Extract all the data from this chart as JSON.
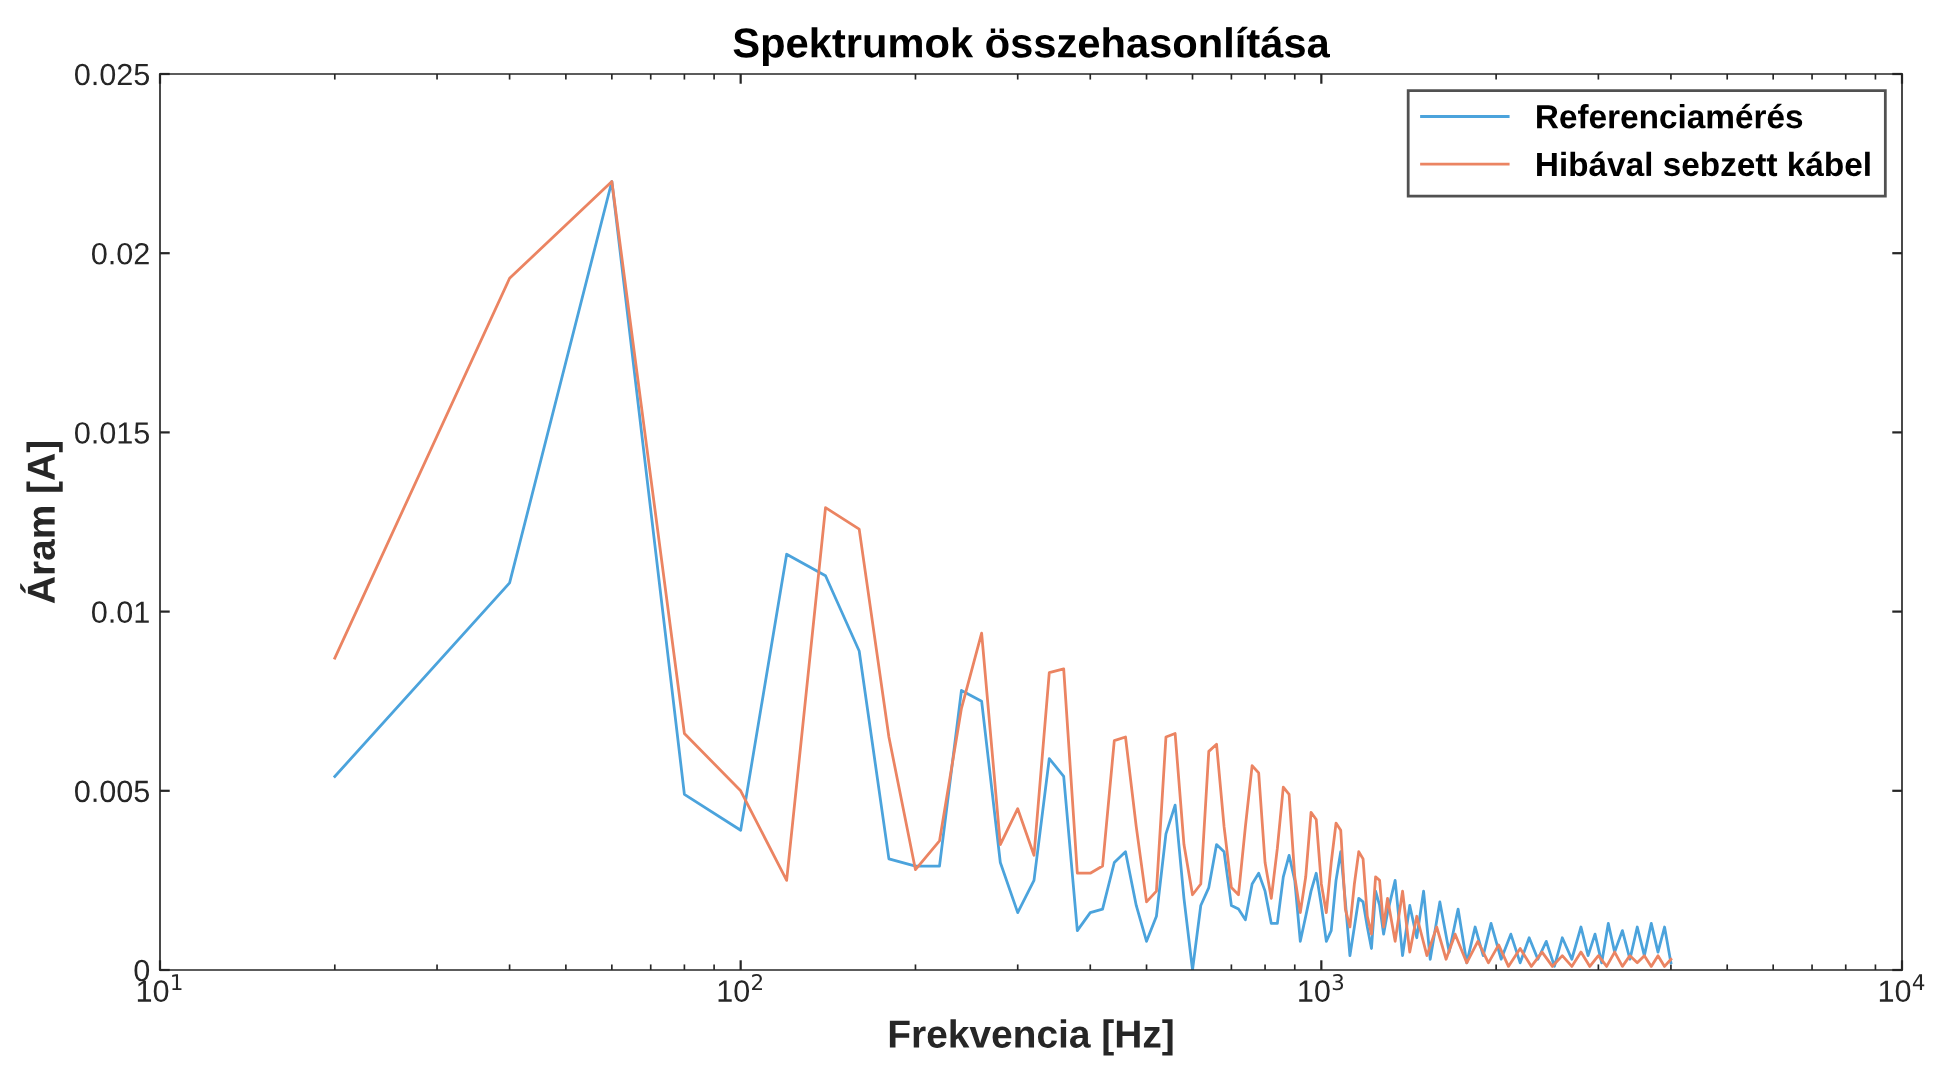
{
  "chart_data": {
    "type": "line",
    "title": "Spektrumok összehasonlítása",
    "xlabel": "Frekvencia [Hz]",
    "ylabel": "Áram [A]",
    "log": "x",
    "xlim": [
      10,
      10000
    ],
    "xticks": [
      {
        "value": 10,
        "label": "10$^{1}$"
      },
      {
        "value": 100,
        "label": "10$^{2}$"
      },
      {
        "value": 1000,
        "label": "10$^{3}$"
      },
      {
        "value": 10000,
        "label": "10$^{4}$"
      }
    ],
    "ylim": [
      0,
      0.025
    ],
    "yticks": [
      0,
      0.005,
      0.01,
      0.015,
      0.02,
      0.025
    ],
    "grid": false,
    "legend": "top right",
    "marker": "none",
    "line_style": "solid",
    "series": [
      {
        "name": "Referenciamérés",
        "color": "#4ba3dc",
        "x": [
          20,
          40,
          60,
          80,
          100,
          120,
          140,
          160,
          180,
          200,
          220,
          240,
          260,
          280,
          300,
          320,
          340,
          360,
          380,
          400,
          420,
          440,
          460,
          480,
          500,
          520,
          540,
          560,
          580,
          600,
          620,
          640,
          660,
          680,
          700,
          720,
          740,
          760,
          780,
          800,
          820,
          840,
          860,
          880,
          900,
          920,
          940,
          960,
          980,
          1000,
          1020,
          1040,
          1060,
          1080,
          1100,
          1120,
          1140,
          1160,
          1180,
          1200,
          1220,
          1240,
          1260,
          1280,
          1300,
          1340,
          1380,
          1420,
          1460,
          1500,
          1540,
          1600,
          1660,
          1720,
          1780,
          1840,
          1900,
          1960,
          2040,
          2120,
          2200,
          2280,
          2360,
          2440,
          2520,
          2600,
          2700,
          2800,
          2880,
          2960,
          3040,
          3120,
          3200,
          3300,
          3400,
          3500,
          3600,
          3700,
          3800,
          3900,
          4000
        ],
        "values": [
          0.0054,
          0.0108,
          0.022,
          0.0049,
          0.0039,
          0.0116,
          0.011,
          0.0089,
          0.0031,
          0.0029,
          0.0029,
          0.0078,
          0.0075,
          0.003,
          0.0016,
          0.0025,
          0.0059,
          0.0054,
          0.0011,
          0.0016,
          0.0017,
          0.003,
          0.0033,
          0.0018,
          0.0008,
          0.0015,
          0.0038,
          0.0046,
          0.002,
          0.0,
          0.0018,
          0.0023,
          0.0035,
          0.0033,
          0.0018,
          0.0017,
          0.0014,
          0.0024,
          0.0027,
          0.0022,
          0.0013,
          0.0013,
          0.0026,
          0.0032,
          0.0025,
          0.0008,
          0.0015,
          0.0022,
          0.0027,
          0.0018,
          0.0008,
          0.0011,
          0.0025,
          0.0033,
          0.0019,
          0.0004,
          0.0012,
          0.002,
          0.0019,
          0.0012,
          0.0006,
          0.0022,
          0.0018,
          0.001,
          0.0016,
          0.0025,
          0.0004,
          0.0018,
          0.0009,
          0.0022,
          0.0003,
          0.0019,
          0.0005,
          0.0017,
          0.0002,
          0.0012,
          0.0004,
          0.0013,
          0.0003,
          0.001,
          0.0002,
          0.0009,
          0.0003,
          0.0008,
          0.0001,
          0.0009,
          0.0003,
          0.0012,
          0.0004,
          0.001,
          0.0002,
          0.0013,
          0.0005,
          0.0011,
          0.0003,
          0.0012,
          0.0004,
          0.0013,
          0.0005,
          0.0012,
          0.0002
        ]
      },
      {
        "name": "Hibával sebzett kábel",
        "color": "#eb8462",
        "x": [
          20,
          40,
          60,
          80,
          100,
          120,
          140,
          160,
          180,
          200,
          220,
          240,
          260,
          280,
          300,
          320,
          340,
          360,
          380,
          400,
          420,
          440,
          460,
          480,
          500,
          520,
          540,
          560,
          580,
          600,
          620,
          640,
          660,
          680,
          700,
          720,
          740,
          760,
          780,
          800,
          820,
          840,
          860,
          880,
          900,
          920,
          940,
          960,
          980,
          1000,
          1020,
          1040,
          1060,
          1080,
          1100,
          1120,
          1140,
          1160,
          1180,
          1200,
          1220,
          1240,
          1260,
          1280,
          1300,
          1340,
          1380,
          1420,
          1460,
          1520,
          1580,
          1640,
          1700,
          1780,
          1860,
          1940,
          2020,
          2100,
          2200,
          2300,
          2400,
          2500,
          2600,
          2700,
          2800,
          2900,
          3000,
          3100,
          3200,
          3300,
          3400,
          3500,
          3600,
          3700,
          3800,
          3900,
          4000
        ],
        "values": [
          0.0087,
          0.0193,
          0.022,
          0.0066,
          0.005,
          0.0025,
          0.0129,
          0.0123,
          0.0065,
          0.0028,
          0.0036,
          0.0073,
          0.0094,
          0.0035,
          0.0045,
          0.0032,
          0.0083,
          0.0084,
          0.0027,
          0.0027,
          0.0029,
          0.0064,
          0.0065,
          0.004,
          0.0019,
          0.0022,
          0.0065,
          0.0066,
          0.0035,
          0.0021,
          0.0024,
          0.0061,
          0.0063,
          0.004,
          0.0023,
          0.0021,
          0.004,
          0.0057,
          0.0055,
          0.003,
          0.002,
          0.0034,
          0.0051,
          0.0049,
          0.0026,
          0.0016,
          0.0026,
          0.0044,
          0.0042,
          0.0024,
          0.0016,
          0.003,
          0.0041,
          0.0039,
          0.0017,
          0.0012,
          0.0024,
          0.0033,
          0.0031,
          0.0015,
          0.001,
          0.0026,
          0.0025,
          0.0012,
          0.002,
          0.0008,
          0.0022,
          0.0005,
          0.0015,
          0.0004,
          0.0012,
          0.0003,
          0.001,
          0.0002,
          0.0008,
          0.0002,
          0.0007,
          0.0001,
          0.0006,
          0.0001,
          0.0005,
          0.0001,
          0.0004,
          0.0001,
          0.0005,
          0.0001,
          0.0004,
          0.0001,
          0.0005,
          0.0001,
          0.0004,
          0.0002,
          0.0004,
          0.0001,
          0.0004,
          0.0001,
          0.0003
        ]
      }
    ]
  }
}
